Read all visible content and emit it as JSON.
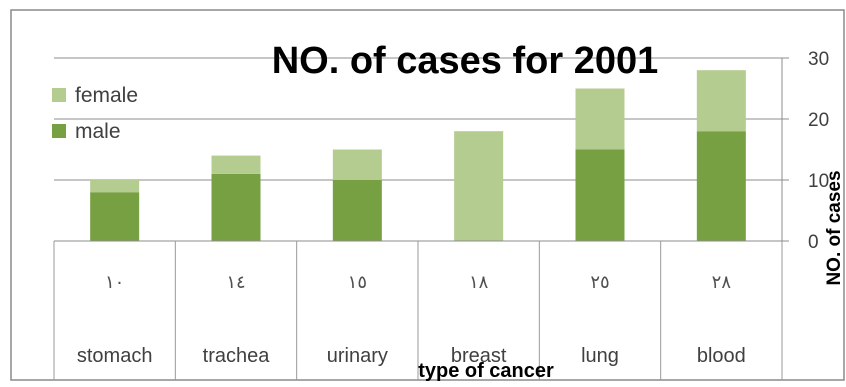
{
  "chart_data": {
    "type": "bar",
    "stacked": true,
    "title": "NO. of cases for 2001",
    "xlabel": "type of cancer",
    "ylabel": "NO. of cases",
    "ylim": [
      0,
      30
    ],
    "yticks": [
      0,
      10,
      20,
      30
    ],
    "y_axis_side": "right",
    "legend_position": "top-left",
    "grid": true,
    "categories": [
      "stomach",
      "trachea",
      "urinary",
      "breast",
      "lung",
      "blood"
    ],
    "table_row_values": [
      "١٠",
      "١٤",
      "١٥",
      "١٨",
      "٢٥",
      "٢٨"
    ],
    "series": [
      {
        "name": "male",
        "values": [
          8,
          11,
          10,
          0,
          15,
          18
        ],
        "color": "#77a043"
      },
      {
        "name": "female",
        "values": [
          2,
          3,
          5,
          18,
          10,
          10
        ],
        "color": "#b4cc8f"
      }
    ],
    "legend_order": [
      "female",
      "male"
    ]
  }
}
